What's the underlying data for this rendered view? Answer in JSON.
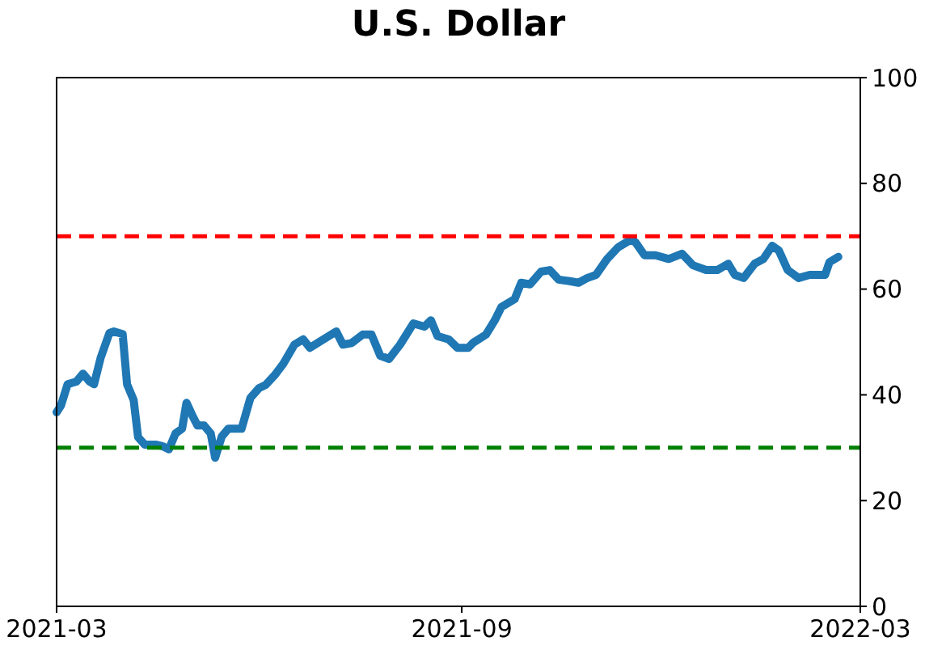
{
  "chart_data": {
    "type": "line",
    "title": "U.S. Dollar",
    "x": [
      "2021-03-01",
      "2021-03-03",
      "2021-03-06",
      "2021-03-10",
      "2021-03-13",
      "2021-03-16",
      "2021-03-18",
      "2021-03-21",
      "2021-03-25",
      "2021-03-27",
      "2021-03-31",
      "2021-04-02",
      "2021-04-05",
      "2021-04-07",
      "2021-04-10",
      "2021-04-15",
      "2021-04-18",
      "2021-04-21",
      "2021-04-24",
      "2021-04-27",
      "2021-04-29",
      "2021-05-02",
      "2021-05-04",
      "2021-05-07",
      "2021-05-10",
      "2021-05-12",
      "2021-05-15",
      "2021-05-18",
      "2021-05-24",
      "2021-05-28",
      "2021-06-01",
      "2021-06-04",
      "2021-06-08",
      "2021-06-12",
      "2021-06-17",
      "2021-06-21",
      "2021-06-24",
      "2021-06-29",
      "2021-07-06",
      "2021-07-09",
      "2021-07-13",
      "2021-07-18",
      "2021-07-22",
      "2021-07-26",
      "2021-07-30",
      "2021-08-04",
      "2021-08-10",
      "2021-08-15",
      "2021-08-18",
      "2021-08-21",
      "2021-08-26",
      "2021-08-30",
      "2021-09-04",
      "2021-09-06",
      "2021-09-12",
      "2021-09-16",
      "2021-09-19",
      "2021-09-25",
      "2021-09-28",
      "2021-10-02",
      "2021-10-07",
      "2021-10-11",
      "2021-10-15",
      "2021-10-20",
      "2021-10-24",
      "2021-10-28",
      "2021-11-01",
      "2021-11-06",
      "2021-11-11",
      "2021-11-17",
      "2021-11-19",
      "2021-11-23",
      "2021-11-28",
      "2021-12-04",
      "2021-12-10",
      "2021-12-15",
      "2021-12-21",
      "2021-12-26",
      "2021-12-31",
      "2022-01-03",
      "2022-01-07",
      "2022-01-12",
      "2022-01-16",
      "2022-01-20",
      "2022-01-23",
      "2022-01-27",
      "2022-02-01",
      "2022-02-06",
      "2022-02-13",
      "2022-02-15",
      "2022-02-19"
    ],
    "series": [
      {
        "color": "#1f77b4",
        "values": [
          36.7,
          38,
          42,
          42.5,
          44,
          42.5,
          42,
          47,
          51.7,
          52,
          51.5,
          42,
          39,
          32,
          30.6,
          30.6,
          30.3,
          29.7,
          32.7,
          33.6,
          38.5,
          35.8,
          34.2,
          34.2,
          32.7,
          28.1,
          32.1,
          33.6,
          33.6,
          39.4,
          41.3,
          41.9,
          43.7,
          45.9,
          49.5,
          50.5,
          48.9,
          50.2,
          52,
          49.5,
          49.8,
          51.4,
          51.4,
          47.4,
          46.8,
          49.5,
          53.5,
          52.9,
          54.1,
          51.1,
          50.5,
          48.9,
          48.9,
          49.8,
          51.4,
          54.1,
          56.6,
          58.1,
          61.2,
          60.9,
          63.3,
          63.6,
          61.8,
          61.5,
          61.2,
          62.1,
          62.7,
          65.7,
          67.9,
          69.4,
          68.8,
          66.4,
          66.4,
          65.7,
          66.7,
          64.5,
          63.6,
          63.6,
          64.8,
          62.7,
          62.1,
          64.8,
          65.7,
          68.2,
          67.3,
          63.6,
          62.1,
          62.7,
          62.7,
          65.1,
          66.1
        ]
      }
    ],
    "xlim": [
      "2021-03-01",
      "2022-03-01"
    ],
    "xticks": [
      {
        "value": "2021-03-01",
        "label": "2021-03"
      },
      {
        "value": "2021-09-01",
        "label": "2021-09"
      },
      {
        "value": "2022-03-01",
        "label": "2022-03"
      }
    ],
    "ylim": [
      0,
      100
    ],
    "yticks": [
      0,
      20,
      40,
      60,
      80,
      100
    ],
    "ref_lines": [
      {
        "axis": "y",
        "value": 70,
        "color": "#ff0000",
        "line_style": "dashed"
      },
      {
        "axis": "y",
        "value": 30,
        "color": "#008000",
        "line_style": "dashed"
      }
    ],
    "grid": false
  }
}
